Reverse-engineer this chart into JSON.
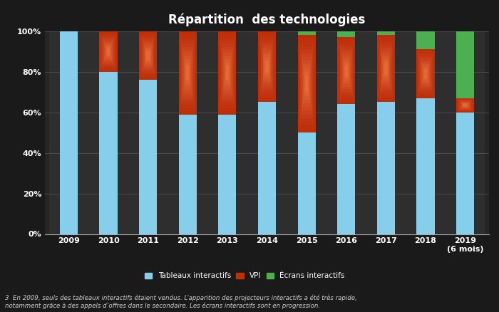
{
  "title": "Répartition  des technologies",
  "years": [
    "2009",
    "2010",
    "2011",
    "2012",
    "2013",
    "2014",
    "2015",
    "2016",
    "2017",
    "2018",
    "2019\n(6 mois)"
  ],
  "tableaux_interactifs": [
    100,
    80,
    76,
    59,
    59,
    65,
    50,
    64,
    65,
    67,
    60
  ],
  "vpi": [
    0,
    20,
    24,
    41,
    41,
    35,
    48,
    33,
    33,
    24,
    7
  ],
  "ecrans_interactifs": [
    0,
    0,
    0,
    0,
    0,
    0,
    2,
    3,
    2,
    9,
    33
  ],
  "color_tableaux": "#87CEEB",
  "color_vpi_outer": "#C03000",
  "color_vpi_inner": "#FF9070",
  "color_ecrans": "#4CAF50",
  "background_color": "#1a1a1a",
  "plot_bg_color": "#252525",
  "strip_bg_color": "#2e2e2e",
  "text_color": "#ffffff",
  "legend_label_tableaux": "Tableaux interactifs",
  "legend_label_vpi": "VPI",
  "legend_label_ecrans": "Écrans interactifs",
  "footnote": "3  En 2009, seuls des tableaux interactifs étaient vendus. L’apparition des projecteurs interactifs a été très rapide,\nnotamment grâce à des appels d’offres dans le secondaire. Les écrans interactifs sont en progression.",
  "ylim": [
    0,
    100
  ],
  "yticks": [
    0,
    20,
    40,
    60,
    80,
    100
  ],
  "ytick_labels": [
    "0%",
    "20%",
    "40%",
    "60%",
    "80%",
    "100%"
  ]
}
